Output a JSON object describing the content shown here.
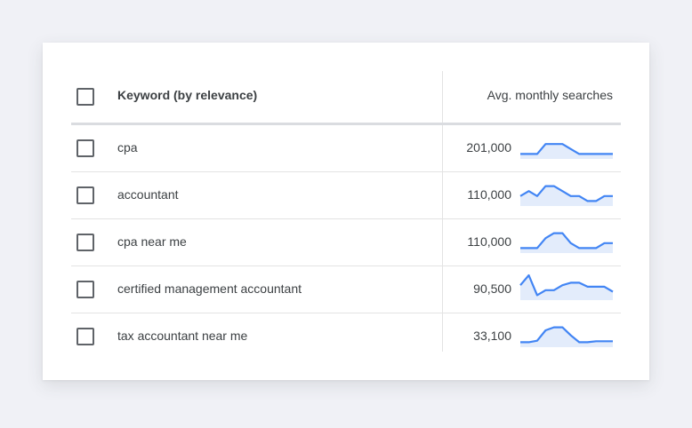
{
  "colors": {
    "sparkline_line": "#4285f4",
    "sparkline_fill": "#e3ecfb",
    "background": "#f0f1f6"
  },
  "table": {
    "headers": {
      "keyword": "Keyword (by relevance)",
      "avg_monthly_searches": "Avg. monthly searches"
    },
    "rows": [
      {
        "keyword": "cpa",
        "searches": "201,000",
        "trend": [
          1,
          1,
          1,
          3,
          3,
          3,
          2,
          1,
          1,
          1,
          1,
          1
        ]
      },
      {
        "keyword": "accountant",
        "searches": "110,000",
        "trend": [
          2,
          3,
          2,
          4,
          4,
          3,
          2,
          2,
          1,
          1,
          2,
          2
        ]
      },
      {
        "keyword": "cpa near me",
        "searches": "110,000",
        "trend": [
          1,
          1,
          1,
          3,
          4,
          4,
          2,
          1,
          1,
          1,
          2,
          2
        ]
      },
      {
        "keyword": "certified management accountant",
        "searches": "90,500",
        "trend": [
          3,
          5,
          1,
          2,
          2,
          3,
          3.5,
          3.5,
          2.7,
          2.7,
          2.7,
          1.7
        ]
      },
      {
        "keyword": "tax accountant near me",
        "searches": "33,100",
        "trend": [
          1,
          1,
          1.3,
          3.4,
          4,
          4,
          2.4,
          1,
          1,
          1.2,
          1.2,
          1.2
        ]
      }
    ]
  }
}
